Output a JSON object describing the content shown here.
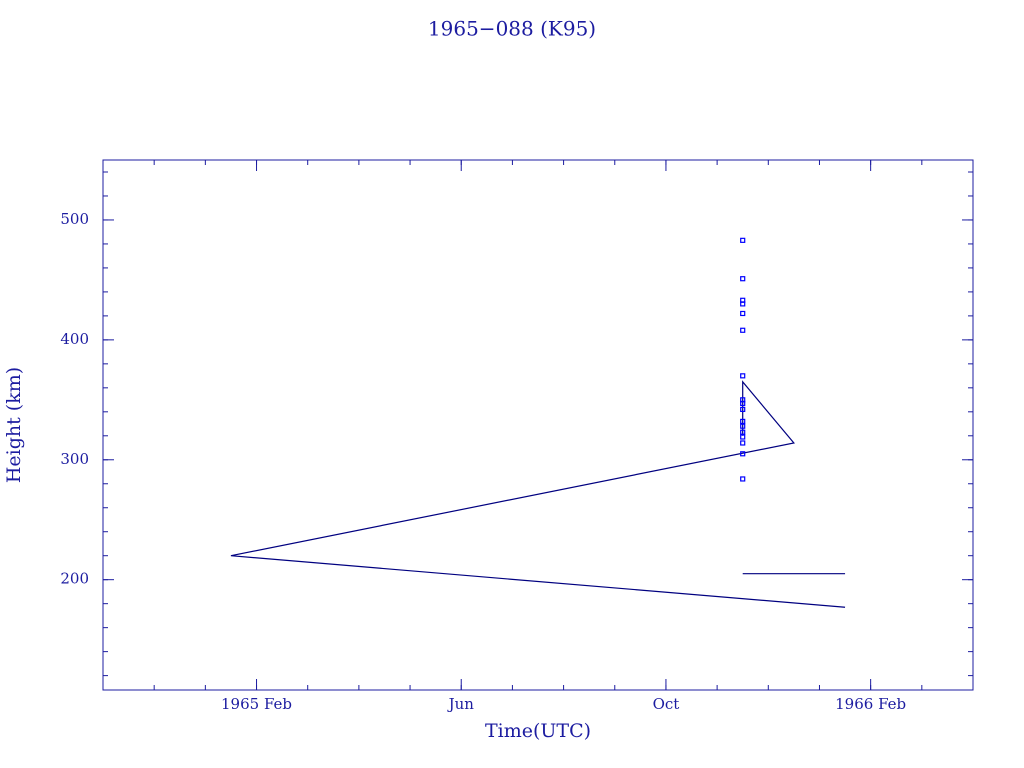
{
  "chart_data": {
    "type": "line",
    "title": "1965−088 (K95)",
    "x_label": "Time(UTC)",
    "y_label": "Height (km)",
    "xlim": [
      "1964-11",
      "1966-04"
    ],
    "xticks": [
      {
        "value": "1965-02",
        "label": "1965 Feb"
      },
      {
        "value": "1965-06",
        "label": "Jun"
      },
      {
        "value": "1965-10",
        "label": "Oct"
      },
      {
        "value": "1966-02",
        "label": "1966 Feb"
      }
    ],
    "ylim": [
      108,
      550
    ],
    "yticks": [
      200,
      300,
      400,
      500
    ],
    "series": [
      {
        "style": "line",
        "color": "#000080",
        "x": [
          "1966-01",
          "1965-01",
          "1965-12",
          "1965-11",
          "1965-11"
        ],
        "values": [
          177,
          220,
          314,
          365,
          320
        ]
      },
      {
        "style": "line",
        "color": "#000080",
        "x": [
          "1965-11",
          "1966-01"
        ],
        "values": [
          205,
          205
        ]
      },
      {
        "style": "points",
        "marker": "square",
        "color": "#0000ff",
        "x": [
          "1965-11",
          "1965-11",
          "1965-11",
          "1965-11",
          "1965-11",
          "1965-11",
          "1965-11",
          "1965-11",
          "1965-11",
          "1965-11",
          "1965-11",
          "1965-11",
          "1965-11",
          "1965-11",
          "1965-11",
          "1965-11",
          "1965-11"
        ],
        "values": [
          483,
          451,
          433,
          430,
          422,
          408,
          370,
          350,
          347,
          342,
          332,
          328,
          323,
          319,
          314,
          305,
          284
        ]
      }
    ]
  }
}
